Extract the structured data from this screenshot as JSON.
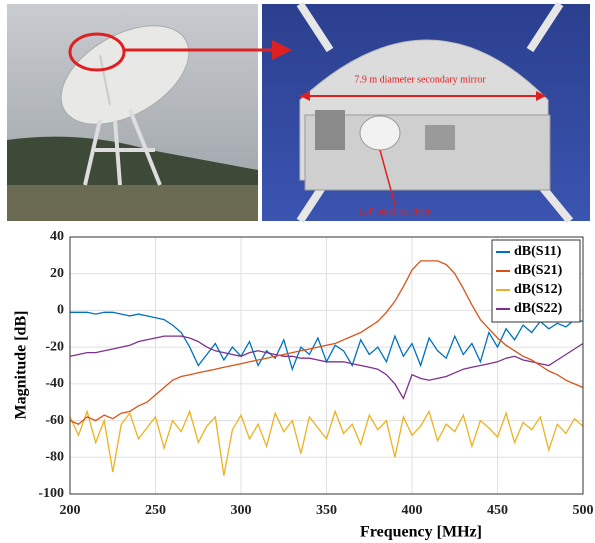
{
  "chart_data": {
    "type": "line",
    "annotations": [
      "7.9 m diameter secondary mirror",
      "L-P band receiver"
    ],
    "xlabel": "Frequency [MHz]",
    "ylabel": "Magnitude [dB]",
    "x": [
      200,
      205,
      210,
      215,
      220,
      225,
      230,
      235,
      240,
      245,
      250,
      255,
      260,
      265,
      270,
      275,
      280,
      285,
      290,
      295,
      300,
      305,
      310,
      315,
      320,
      325,
      330,
      335,
      340,
      345,
      350,
      355,
      360,
      365,
      370,
      375,
      380,
      385,
      390,
      395,
      400,
      405,
      410,
      415,
      420,
      425,
      430,
      435,
      440,
      445,
      450,
      455,
      460,
      465,
      470,
      475,
      480,
      485,
      490,
      495,
      500
    ],
    "series": [
      {
        "name": "dB(S11)",
        "color": "#0072bd",
        "values": [
          -1,
          -1,
          -1,
          -2,
          -1,
          -1,
          -2,
          -3,
          -2,
          -3,
          -4,
          -5,
          -8,
          -12,
          -20,
          -30,
          -24,
          -18,
          -27,
          -20,
          -25,
          -17,
          -30,
          -22,
          -26,
          -16,
          -32,
          -20,
          -24,
          -15,
          -28,
          -19,
          -22,
          -30,
          -16,
          -24,
          -20,
          -28,
          -14,
          -25,
          -18,
          -30,
          -15,
          -22,
          -26,
          -14,
          -24,
          -18,
          -28,
          -12,
          -20,
          -10,
          -16,
          -8,
          -12,
          -6,
          -10,
          -7,
          -9,
          -5,
          -6
        ]
      },
      {
        "name": "dB(S21)",
        "color": "#d95319",
        "values": [
          -60,
          -62,
          -58,
          -60,
          -57,
          -59,
          -56,
          -55,
          -52,
          -50,
          -46,
          -42,
          -38,
          -36,
          -35,
          -34,
          -33,
          -32,
          -31,
          -30,
          -29,
          -28,
          -27,
          -26,
          -25,
          -24,
          -23,
          -22,
          -21,
          -20,
          -19,
          -18,
          -16,
          -14,
          -12,
          -9,
          -6,
          -1,
          5,
          13,
          22,
          27,
          27,
          27,
          25,
          20,
          12,
          3,
          -5,
          -10,
          -15,
          -19,
          -22,
          -25,
          -27,
          -30,
          -33,
          -35,
          -38,
          -40,
          -42
        ]
      },
      {
        "name": "dB(S12)",
        "color": "#edb120",
        "values": [
          -58,
          -68,
          -55,
          -72,
          -60,
          -88,
          -62,
          -56,
          -70,
          -64,
          -58,
          -75,
          -60,
          -66,
          -55,
          -72,
          -63,
          -58,
          -90,
          -65,
          -57,
          -70,
          -62,
          -74,
          -56,
          -66,
          -60,
          -78,
          -58,
          -64,
          -70,
          -55,
          -67,
          -62,
          -73,
          -57,
          -65,
          -60,
          -80,
          -58,
          -68,
          -63,
          -55,
          -71,
          -62,
          -66,
          -57,
          -74,
          -60,
          -64,
          -69,
          -56,
          -72,
          -61,
          -65,
          -58,
          -76,
          -62,
          -67,
          -59,
          -63
        ]
      },
      {
        "name": "dB(S22)",
        "color": "#7e2f8e",
        "values": [
          -25,
          -24,
          -23,
          -23,
          -22,
          -21,
          -20,
          -19,
          -17,
          -16,
          -15,
          -14,
          -14,
          -14,
          -15,
          -17,
          -20,
          -22,
          -23,
          -24,
          -25,
          -23,
          -22,
          -23,
          -24,
          -25,
          -25,
          -26,
          -26,
          -27,
          -28,
          -28,
          -28,
          -29,
          -30,
          -31,
          -32,
          -35,
          -40,
          -48,
          -35,
          -37,
          -38,
          -37,
          -36,
          -34,
          -32,
          -31,
          -30,
          -29,
          -28,
          -26,
          -25,
          -27,
          -28,
          -29,
          -30,
          -27,
          -24,
          -21,
          -18
        ]
      }
    ],
    "xlim": [
      200,
      500
    ],
    "xticks": [
      200,
      250,
      300,
      350,
      400,
      450,
      500
    ],
    "ylim": [
      -100,
      40
    ],
    "yticks": [
      -100,
      -80,
      -60,
      -40,
      -20,
      0,
      20,
      40
    ],
    "grid": true,
    "legend": "top-right"
  }
}
